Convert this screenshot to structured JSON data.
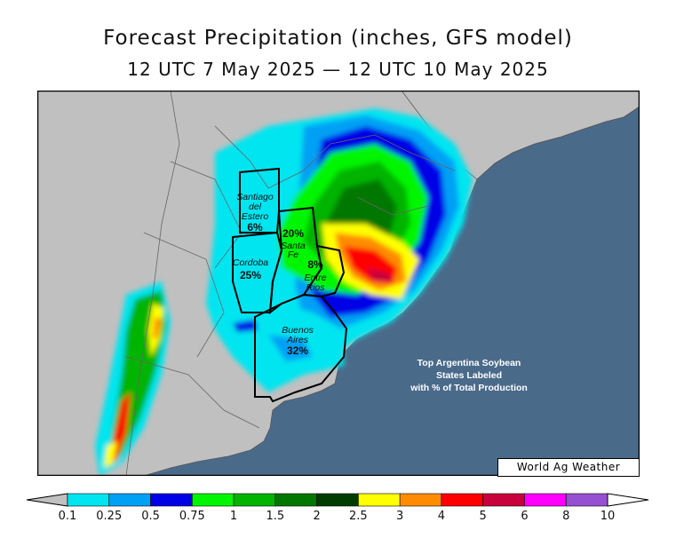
{
  "title": "Forecast Precipitation (inches, GFS model)",
  "subtitle": "12 UTC 7 May 2025 — 12 UTC 10 May 2025",
  "states": [
    {
      "name_lines": [
        "Santiago",
        "del",
        "Estero"
      ],
      "share": "6%"
    },
    {
      "name_lines": [
        "Cordoba"
      ],
      "share": "25%"
    },
    {
      "name_lines": [
        "Santa",
        "Fe"
      ],
      "share": "20%"
    },
    {
      "name_lines": [
        "Entre",
        "Rios"
      ],
      "share": "8%"
    },
    {
      "name_lines": [
        "Buenos",
        "Aires"
      ],
      "share": "32%"
    }
  ],
  "annotation": [
    "Top Argentina Soybean",
    "States Labeled",
    "with % of Total Production"
  ],
  "credit": "World Ag Weather",
  "legend": {
    "ticks": [
      "0.1",
      "0.25",
      "0.5",
      "0.75",
      "1",
      "1.5",
      "2",
      "2.5",
      "3",
      "4",
      "5",
      "6",
      "8",
      "10"
    ],
    "colors": [
      "#00e5f0",
      "#00a0f5",
      "#0000e6",
      "#00f500",
      "#00b400",
      "#007800",
      "#003c00",
      "#ffff00",
      "#ff8c00",
      "#ff0000",
      "#c8003c",
      "#ff00ff",
      "#9650d2"
    ],
    "below_min_color": "#c0c0c0",
    "above_max_color": "#ffffff"
  },
  "colors": {
    "ocean": "#4a6a8a",
    "land": "#c0c0c0"
  }
}
